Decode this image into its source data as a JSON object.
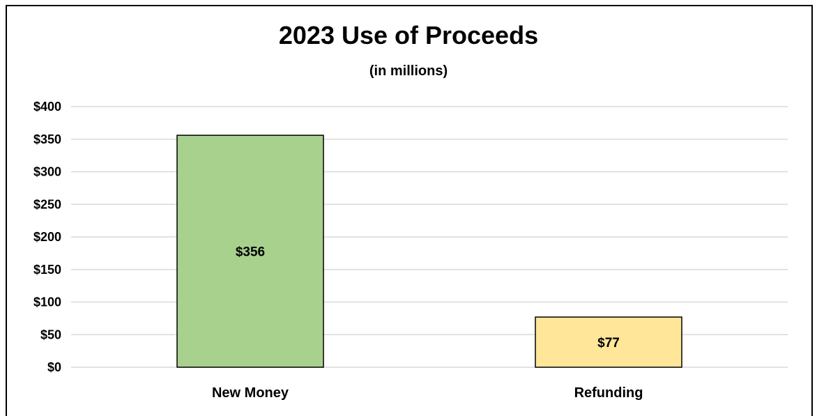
{
  "chart_data": {
    "type": "bar",
    "title": "2023 Use of Proceeds",
    "subtitle": "(in millions)",
    "categories": [
      "New Money",
      "Refunding"
    ],
    "values": [
      356,
      77
    ],
    "data_labels": [
      "$356",
      "$77"
    ],
    "bar_colors": [
      "#a9d18e",
      "#ffe699"
    ],
    "ylim": [
      0,
      400
    ],
    "yticks": [
      0,
      50,
      100,
      150,
      200,
      250,
      300,
      350,
      400
    ],
    "ytick_labels": [
      "$0",
      "$50",
      "$100",
      "$150",
      "$200",
      "$250",
      "$300",
      "$350",
      "$400"
    ],
    "grid": true,
    "legend": "none",
    "xlabel": "",
    "ylabel": ""
  }
}
